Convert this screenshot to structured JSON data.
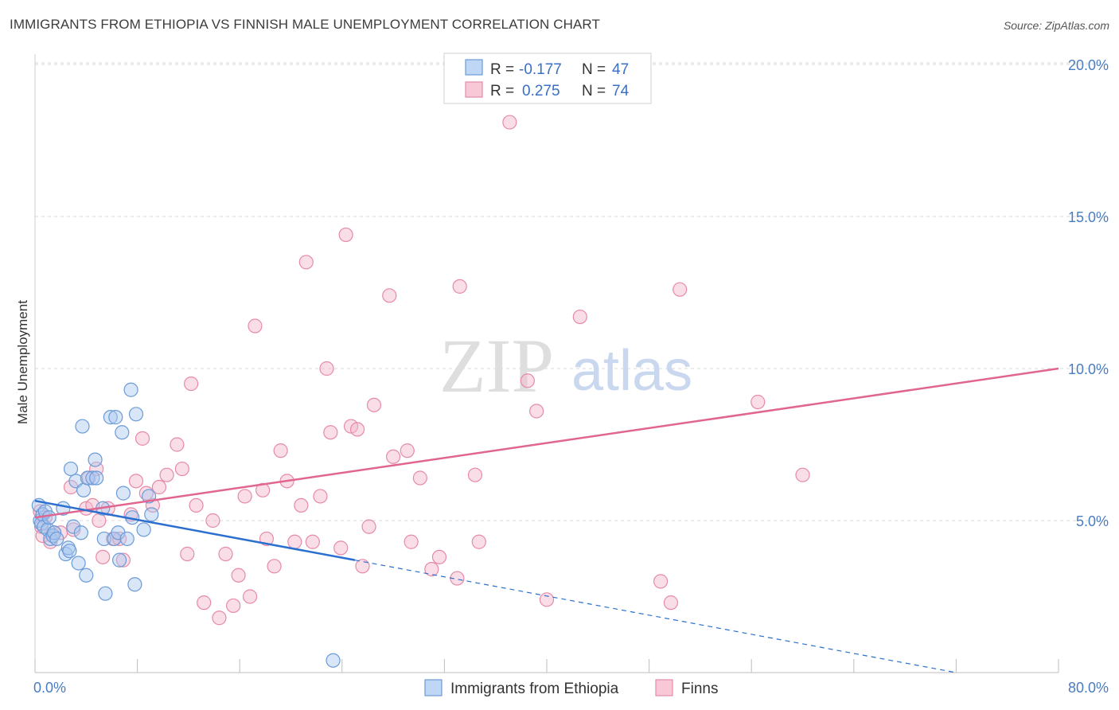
{
  "title": "IMMIGRANTS FROM ETHIOPIA VS FINNISH MALE UNEMPLOYMENT CORRELATION CHART",
  "source": "Source: ZipAtlas.com",
  "watermark": {
    "zip": "ZIP",
    "atlas": "atlas"
  },
  "colors": {
    "blue_fill": "#a9c8f0",
    "blue_stroke": "#6b9bd8",
    "blue_line": "#2b6fcf",
    "pink_fill": "#f5b6c9",
    "pink_stroke": "#e68aa8",
    "pink_line": "#e0668f",
    "grid": "#d8d8d8",
    "axis_text": "#4a7cc0"
  },
  "legend": {
    "rows": [
      {
        "r_label": "R =",
        "r_value": "-0.177",
        "n_label": "N =",
        "n_value": "47"
      },
      {
        "r_label": "R =",
        "r_value": "0.275",
        "n_label": "N =",
        "n_value": "74"
      }
    ]
  },
  "chart_data": {
    "type": "scatter",
    "title": "IMMIGRANTS FROM ETHIOPIA VS FINNISH MALE UNEMPLOYMENT CORRELATION CHART",
    "xlabel": "",
    "ylabel": "Male Unemployment",
    "xlim": [
      0,
      80
    ],
    "ylim": [
      0,
      21
    ],
    "x_tick_labels": [
      "0.0%",
      "80.0%"
    ],
    "y_ticks": [
      {
        "value": 5,
        "label": "5.0%"
      },
      {
        "value": 10,
        "label": "10.0%"
      },
      {
        "value": 15,
        "label": "15.0%"
      },
      {
        "value": 20,
        "label": "20.0%"
      }
    ],
    "series": [
      {
        "name": "Immigrants from Ethiopia",
        "color": "blue",
        "trend": {
          "x0": 0,
          "y0": 5.65,
          "x1": 25,
          "y1": 3.7,
          "dash_to_x": 72,
          "dash_to_y": 0.0
        },
        "points": [
          [
            0.3,
            5.5
          ],
          [
            0.4,
            5.0
          ],
          [
            0.5,
            4.9
          ],
          [
            0.6,
            5.2
          ],
          [
            0.7,
            4.8
          ],
          [
            0.8,
            5.3
          ],
          [
            1.0,
            4.7
          ],
          [
            1.1,
            5.1
          ],
          [
            1.2,
            4.4
          ],
          [
            1.4,
            4.5
          ],
          [
            1.5,
            4.6
          ],
          [
            1.7,
            4.4
          ],
          [
            2.2,
            5.4
          ],
          [
            2.4,
            3.9
          ],
          [
            2.6,
            4.1
          ],
          [
            2.7,
            4.0
          ],
          [
            2.8,
            6.7
          ],
          [
            3.0,
            4.8
          ],
          [
            3.2,
            6.3
          ],
          [
            3.4,
            3.6
          ],
          [
            3.6,
            4.6
          ],
          [
            3.7,
            8.1
          ],
          [
            3.8,
            6.0
          ],
          [
            4.0,
            3.2
          ],
          [
            4.1,
            6.4
          ],
          [
            4.5,
            6.4
          ],
          [
            4.7,
            7.0
          ],
          [
            4.8,
            6.4
          ],
          [
            5.3,
            5.4
          ],
          [
            5.4,
            4.4
          ],
          [
            5.5,
            2.6
          ],
          [
            5.9,
            8.4
          ],
          [
            6.2,
            4.4
          ],
          [
            6.3,
            8.4
          ],
          [
            6.5,
            4.6
          ],
          [
            6.6,
            3.7
          ],
          [
            6.8,
            7.9
          ],
          [
            6.9,
            5.9
          ],
          [
            7.2,
            4.4
          ],
          [
            7.5,
            9.3
          ],
          [
            7.6,
            5.1
          ],
          [
            7.8,
            2.9
          ],
          [
            7.9,
            8.5
          ],
          [
            8.5,
            4.7
          ],
          [
            8.9,
            5.8
          ],
          [
            9.1,
            5.2
          ],
          [
            23.3,
            0.4
          ]
        ]
      },
      {
        "name": "Finns",
        "color": "pink",
        "trend": {
          "x0": 0,
          "y0": 5.1,
          "x1": 80,
          "y1": 10.0
        },
        "points": [
          [
            0.4,
            5.3
          ],
          [
            0.5,
            4.8
          ],
          [
            0.6,
            4.5
          ],
          [
            0.8,
            5.1
          ],
          [
            1.2,
            4.3
          ],
          [
            1.5,
            4.6
          ],
          [
            2.0,
            4.6
          ],
          [
            2.8,
            6.1
          ],
          [
            3.0,
            4.7
          ],
          [
            4.0,
            5.4
          ],
          [
            4.2,
            6.4
          ],
          [
            4.5,
            5.5
          ],
          [
            4.8,
            6.7
          ],
          [
            5.0,
            5.0
          ],
          [
            5.3,
            3.8
          ],
          [
            5.7,
            5.4
          ],
          [
            6.1,
            4.4
          ],
          [
            6.6,
            4.4
          ],
          [
            6.9,
            3.7
          ],
          [
            7.5,
            5.2
          ],
          [
            7.9,
            6.3
          ],
          [
            8.4,
            7.7
          ],
          [
            8.7,
            5.9
          ],
          [
            9.2,
            5.5
          ],
          [
            9.7,
            6.1
          ],
          [
            10.3,
            6.5
          ],
          [
            11.1,
            7.5
          ],
          [
            11.5,
            6.7
          ],
          [
            11.9,
            3.9
          ],
          [
            12.2,
            9.5
          ],
          [
            12.6,
            5.5
          ],
          [
            13.2,
            2.3
          ],
          [
            13.9,
            5.0
          ],
          [
            14.4,
            1.8
          ],
          [
            14.9,
            3.9
          ],
          [
            15.5,
            2.2
          ],
          [
            15.9,
            3.2
          ],
          [
            16.4,
            5.8
          ],
          [
            16.8,
            2.5
          ],
          [
            17.2,
            11.4
          ],
          [
            17.8,
            6.0
          ],
          [
            18.1,
            4.4
          ],
          [
            18.7,
            3.5
          ],
          [
            19.2,
            7.3
          ],
          [
            19.7,
            6.3
          ],
          [
            20.3,
            4.3
          ],
          [
            20.8,
            5.5
          ],
          [
            21.2,
            13.5
          ],
          [
            21.7,
            4.3
          ],
          [
            22.3,
            5.8
          ],
          [
            22.8,
            10.0
          ],
          [
            23.1,
            7.9
          ],
          [
            23.9,
            4.1
          ],
          [
            24.3,
            14.4
          ],
          [
            24.7,
            8.1
          ],
          [
            25.2,
            8.0
          ],
          [
            25.6,
            3.5
          ],
          [
            26.1,
            4.8
          ],
          [
            26.5,
            8.8
          ],
          [
            27.7,
            12.4
          ],
          [
            28.0,
            7.1
          ],
          [
            29.1,
            7.3
          ],
          [
            29.4,
            4.3
          ],
          [
            30.1,
            6.4
          ],
          [
            31.0,
            3.4
          ],
          [
            31.6,
            3.8
          ],
          [
            33.0,
            3.1
          ],
          [
            33.2,
            12.7
          ],
          [
            34.4,
            6.5
          ],
          [
            34.7,
            4.3
          ],
          [
            37.1,
            18.1
          ],
          [
            38.5,
            9.6
          ],
          [
            40.0,
            2.4
          ],
          [
            48.9,
            3.0
          ]
        ],
        "extra_points": [
          [
            39.2,
            8.6
          ],
          [
            42.6,
            11.7
          ],
          [
            50.4,
            12.6
          ],
          [
            49.7,
            2.3
          ],
          [
            56.5,
            8.9
          ],
          [
            60.0,
            6.5
          ]
        ]
      }
    ]
  },
  "bottom_legend": [
    {
      "label": "Immigrants from Ethiopia",
      "color": "blue"
    },
    {
      "label": "Finns",
      "color": "pink"
    }
  ]
}
